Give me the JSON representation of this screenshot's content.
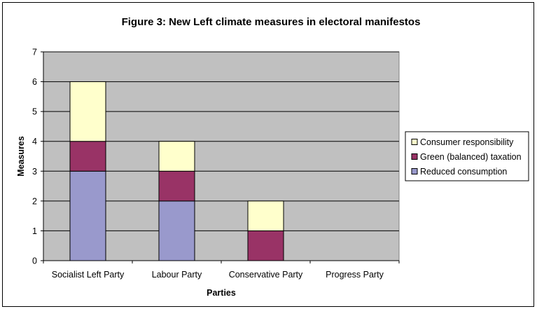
{
  "chart_data": {
    "type": "bar",
    "stacked": true,
    "title": "Figure 3: New Left climate measures in electoral manifestos",
    "xlabel": "Parties",
    "ylabel": "Measures",
    "categories": [
      "Socialist Left Party",
      "Labour Party",
      "Conservative Party",
      "Progress Party"
    ],
    "series": [
      {
        "name": "Reduced consumption",
        "values": [
          3,
          2,
          0,
          0
        ],
        "color": "#9999cc"
      },
      {
        "name": "Green (balanced) taxation",
        "values": [
          1,
          1,
          1,
          0
        ],
        "color": "#993366"
      },
      {
        "name": "Consumer responsibility",
        "values": [
          2,
          1,
          1,
          0
        ],
        "color": "#ffffcc"
      }
    ],
    "ylim": [
      0,
      7
    ],
    "yticks": [
      0,
      1,
      2,
      3,
      4,
      5,
      6,
      7
    ],
    "grid": true,
    "plot_background": "#c0c0c0",
    "legend": {
      "position": "right",
      "order": [
        "Consumer responsibility",
        "Green (balanced) taxation",
        "Reduced consumption"
      ]
    }
  }
}
